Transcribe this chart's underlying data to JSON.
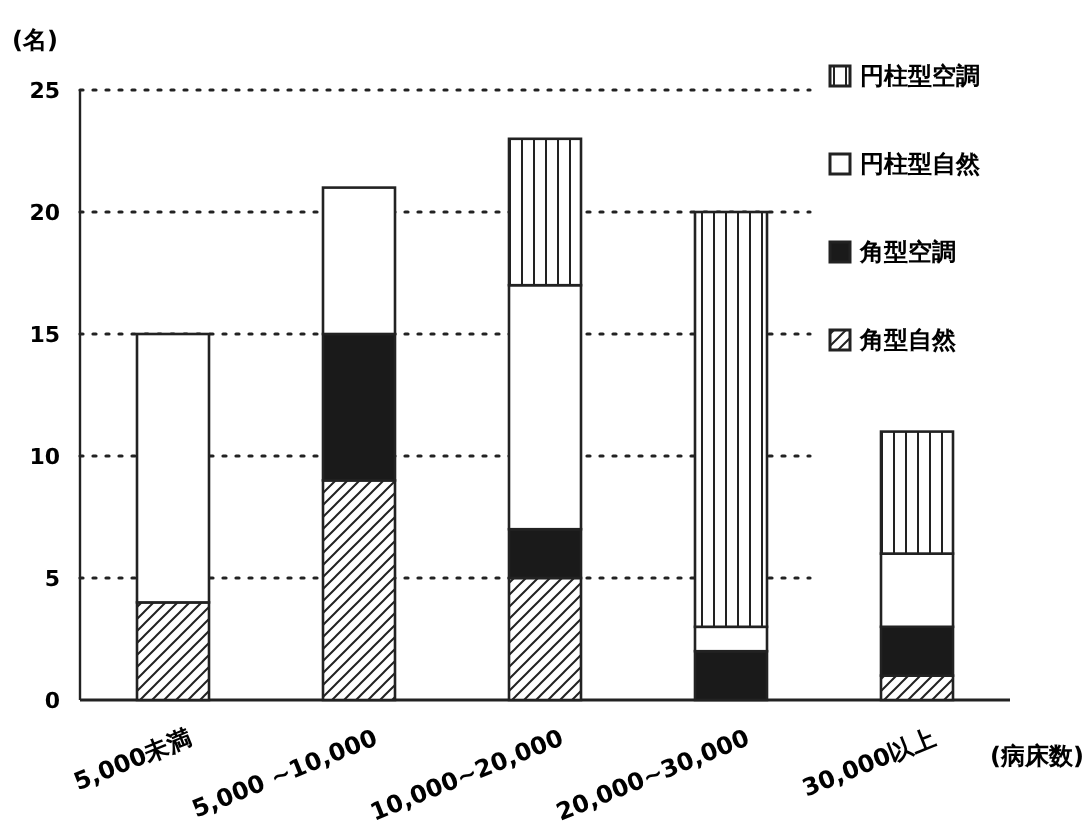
{
  "chart_data": {
    "type": "bar",
    "stacked": true,
    "ylabel": "(名)",
    "xlabel": "(病床数)",
    "categories": [
      "5,000未満",
      "5,000 ~10,000",
      "10,000~20,000",
      "20,000~30,000",
      "30,000以上"
    ],
    "series": [
      {
        "name": "角型自然",
        "color": "#222222",
        "values": [
          4,
          9,
          5,
          0,
          1
        ]
      },
      {
        "name": "角型空調",
        "color": "#1a1a1a",
        "values": [
          0,
          6,
          2,
          2,
          2
        ]
      },
      {
        "name": "円柱型自然",
        "color": "#ffffff",
        "values": [
          11,
          6,
          10,
          1,
          3
        ]
      },
      {
        "name": "円柱型空調",
        "color": "#222222",
        "values": [
          0,
          0,
          6,
          17,
          5
        ]
      }
    ],
    "ylim": [
      0,
      25
    ],
    "yticks": [
      0,
      5,
      10,
      15,
      20,
      25
    ],
    "grid": "y",
    "legend": "top right"
  }
}
